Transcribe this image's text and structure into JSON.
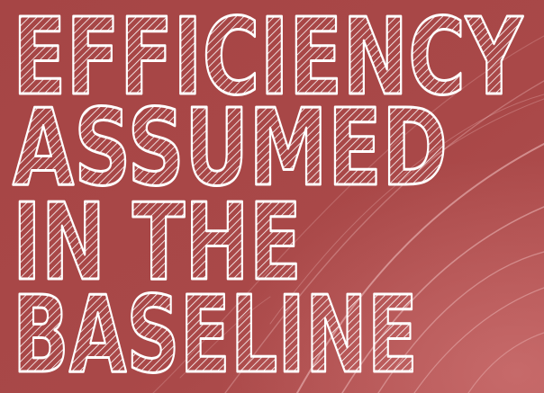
{
  "background_color": "#a84747",
  "text_color": "#ffffff",
  "title": {
    "lines": [
      "EFFICIENCY",
      "ASSUMED",
      "IN THE",
      "BASELINE"
    ]
  }
}
